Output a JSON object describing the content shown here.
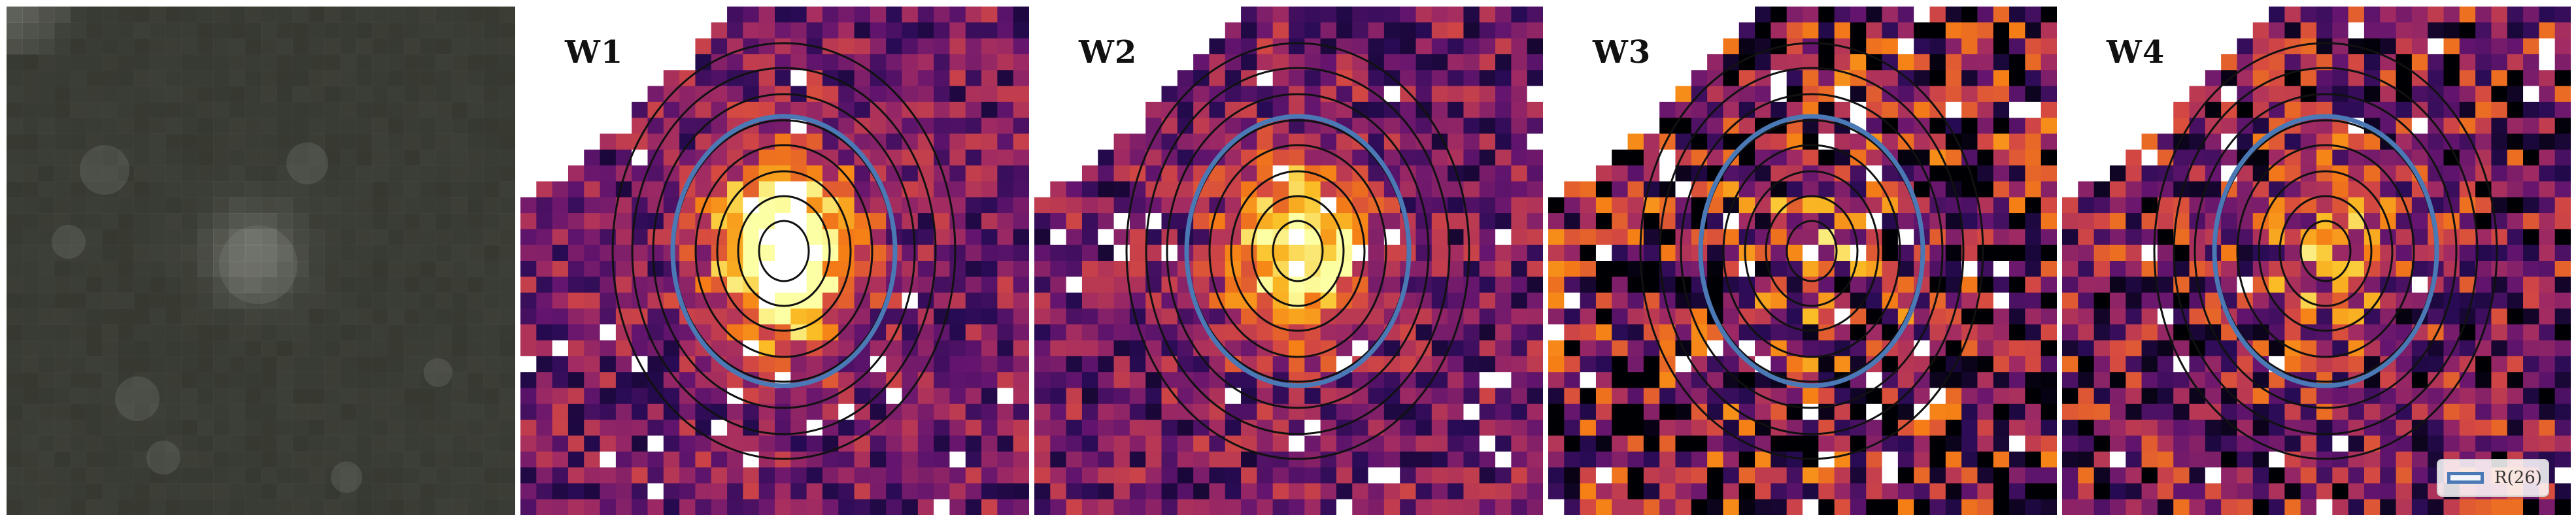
{
  "panels": [
    {
      "id": "rgb",
      "label": "",
      "kind": "rgb"
    },
    {
      "id": "w1",
      "label": "W1",
      "kind": "heat",
      "seed": 11,
      "emptyWedge": true,
      "core": "bright"
    },
    {
      "id": "w2",
      "label": "W2",
      "kind": "heat",
      "seed": 23,
      "emptyWedge": true,
      "core": "medium"
    },
    {
      "id": "w3",
      "label": "W3",
      "kind": "heat",
      "seed": 37,
      "emptyWedge": true,
      "core": "noisy"
    },
    {
      "id": "w4",
      "label": "W4",
      "kind": "heat",
      "seed": 51,
      "emptyWedge": true,
      "core": "dim"
    }
  ],
  "legend": {
    "label": "R(26)"
  },
  "colors": {
    "ellipse": "#111111",
    "aperture": "#4a79b6",
    "rgb_background": "#2c2d26"
  },
  "colormap": "inferno"
}
